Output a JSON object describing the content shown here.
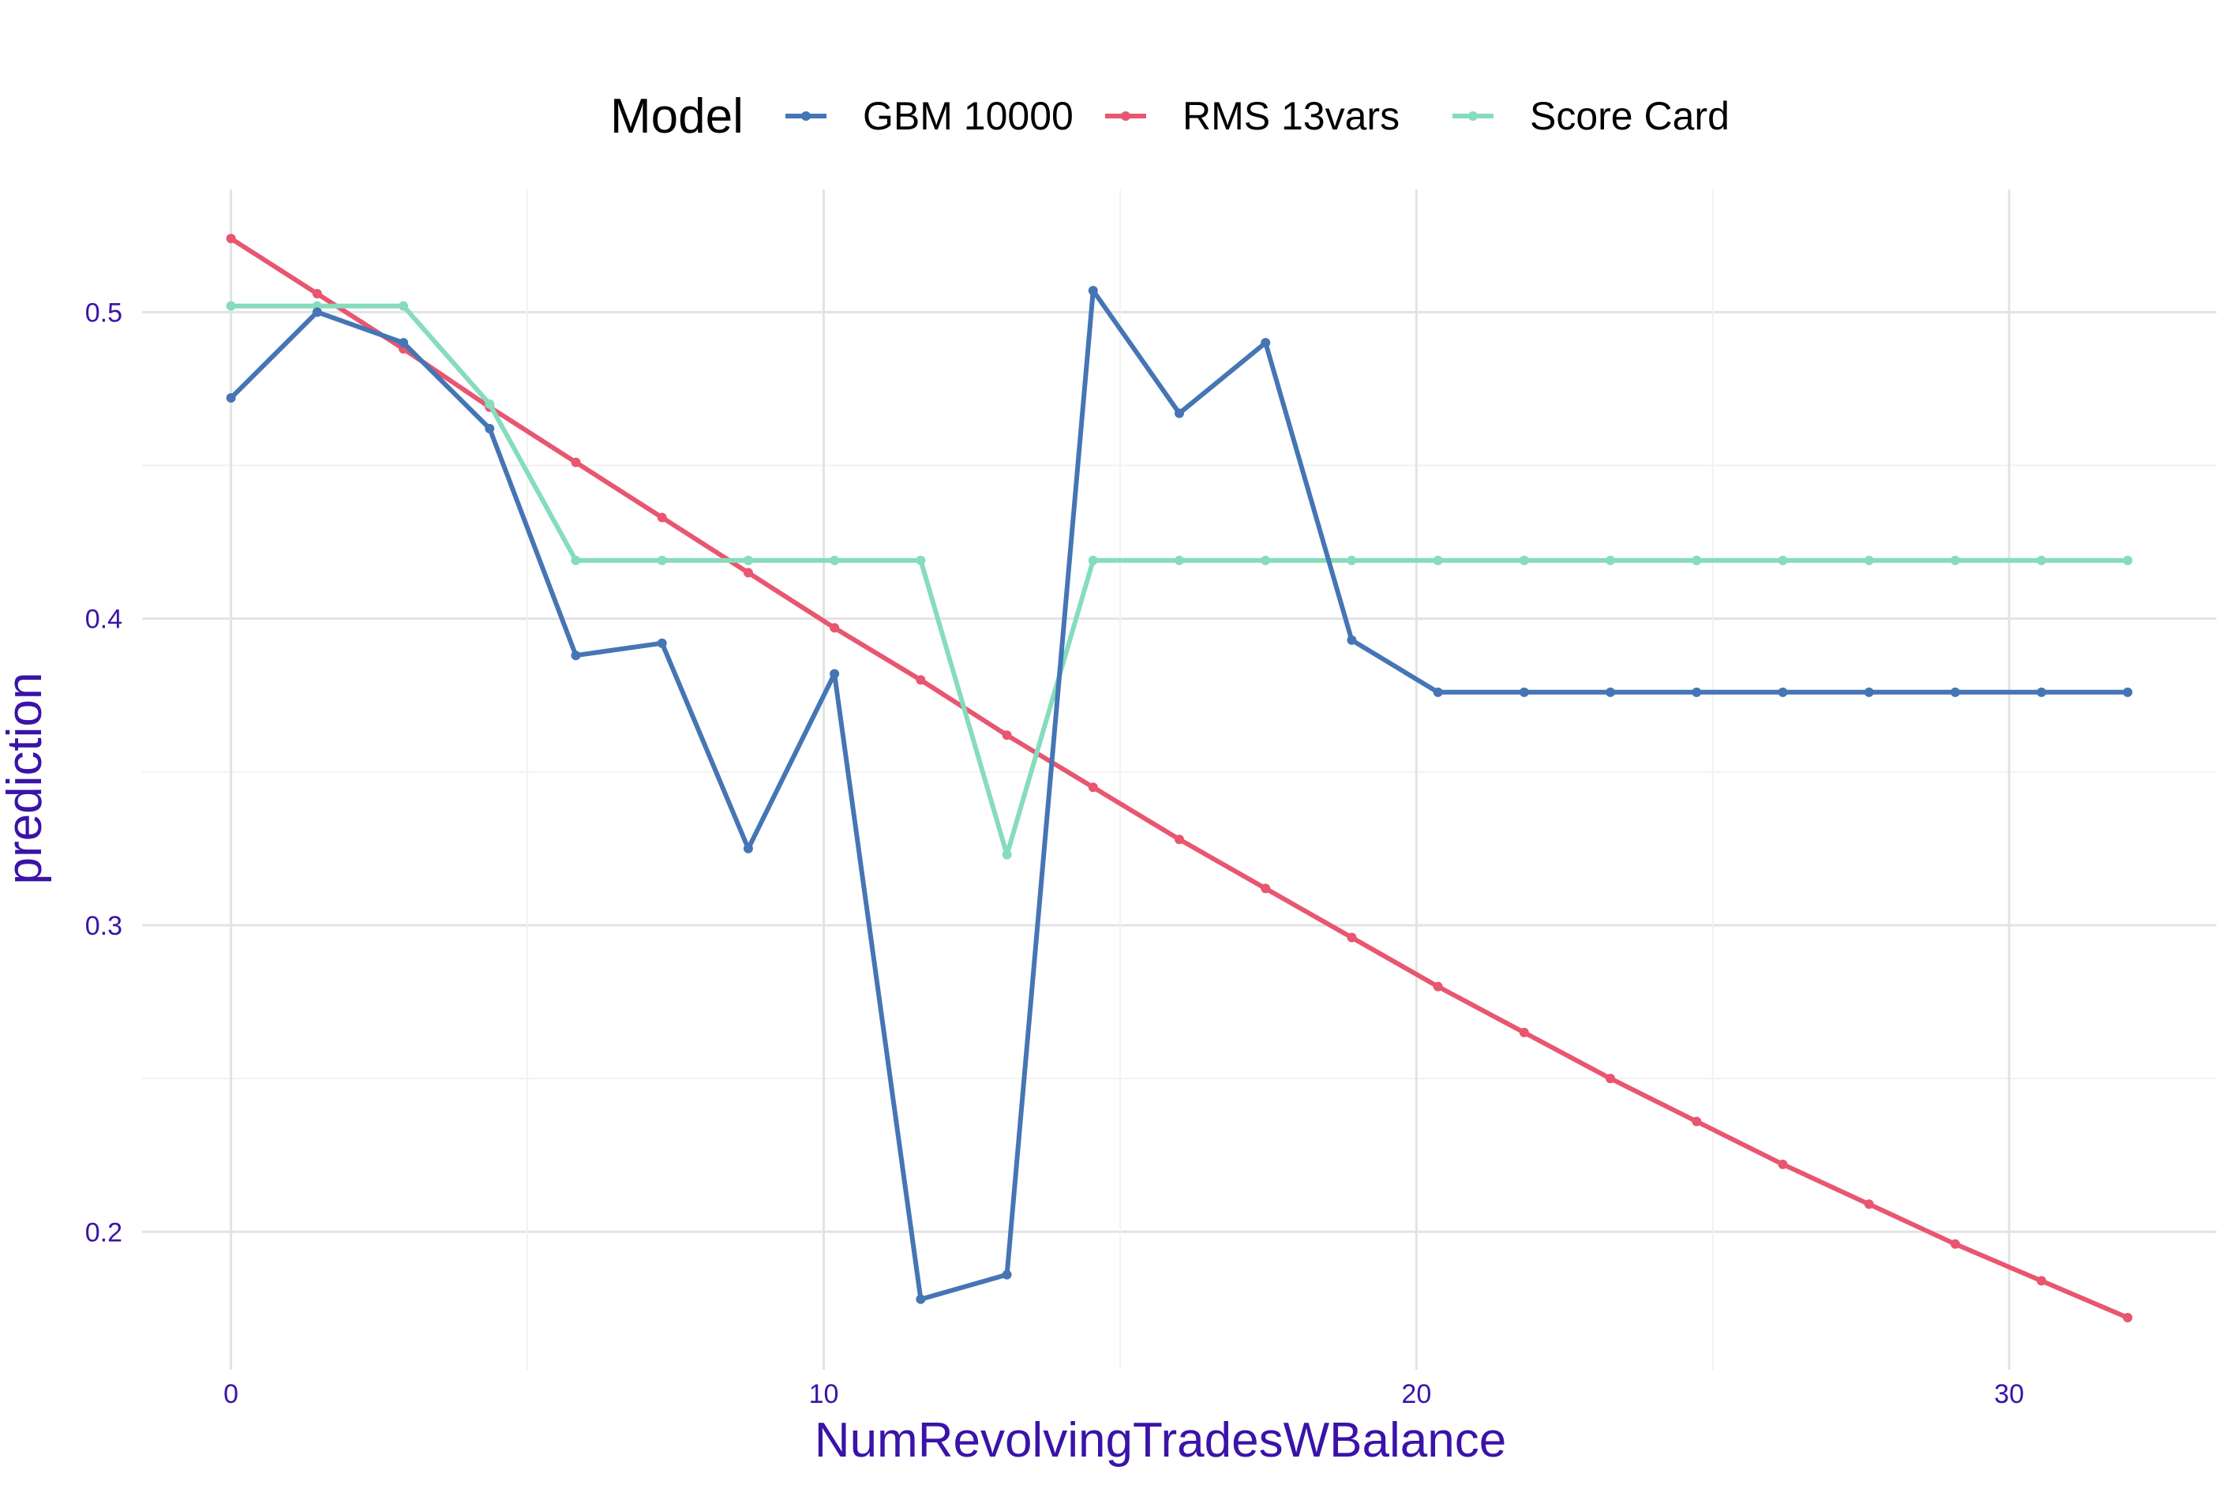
{
  "chart_data": {
    "type": "line",
    "xlabel": "NumRevolvingTradesWBalance",
    "ylabel": "prediction",
    "legend": {
      "title": "Model",
      "position": "top"
    },
    "xlim": [
      -1.5,
      33.5
    ],
    "ylim": [
      0.155,
      0.54
    ],
    "x_ticks": [
      0,
      10,
      20,
      30
    ],
    "x_tick_labels": [
      "0",
      "10",
      "20",
      "30"
    ],
    "y_ticks": [
      0.2,
      0.3,
      0.4,
      0.5
    ],
    "y_tick_labels": [
      "0.2",
      "0.3",
      "0.4",
      "0.5"
    ],
    "grid": true,
    "x": [
      0,
      1.4545,
      2.9091,
      4.3636,
      5.8182,
      7.2727,
      8.7273,
      10.1818,
      11.6364,
      13.0909,
      14.5455,
      16.0,
      17.4545,
      18.9091,
      20.3636,
      21.8182,
      23.2727,
      24.7273,
      26.1818,
      27.6364,
      29.0909,
      30.5455,
      32.0
    ],
    "series": [
      {
        "name": "GBM 10000",
        "color": "#4575b4",
        "values": [
          0.472,
          0.5,
          0.49,
          0.462,
          0.388,
          0.392,
          0.325,
          0.382,
          0.178,
          0.186,
          0.507,
          0.467,
          0.49,
          0.393,
          0.376,
          0.376,
          0.376,
          0.376,
          0.376,
          0.376,
          0.376,
          0.376,
          0.376
        ]
      },
      {
        "name": "RMS 13vars",
        "color": "#e8566f",
        "values": [
          0.524,
          0.506,
          0.488,
          0.469,
          0.451,
          0.433,
          0.415,
          0.397,
          0.38,
          0.362,
          0.345,
          0.328,
          0.312,
          0.296,
          0.28,
          0.265,
          0.25,
          0.236,
          0.222,
          0.209,
          0.196,
          0.184,
          0.172
        ]
      },
      {
        "name": "Score Card",
        "color": "#86dcbc",
        "values": [
          0.502,
          0.502,
          0.502,
          0.47,
          0.419,
          0.419,
          0.419,
          0.419,
          0.419,
          0.323,
          0.419,
          0.419,
          0.419,
          0.419,
          0.419,
          0.419,
          0.419,
          0.419,
          0.419,
          0.419,
          0.419,
          0.419,
          0.419
        ]
      }
    ],
    "colors": {
      "tick_text": "#3a13a8",
      "axis_title": "#3a13a8",
      "grid_major": "#e3e3e3",
      "grid_minor": "#f2f2f2"
    }
  }
}
